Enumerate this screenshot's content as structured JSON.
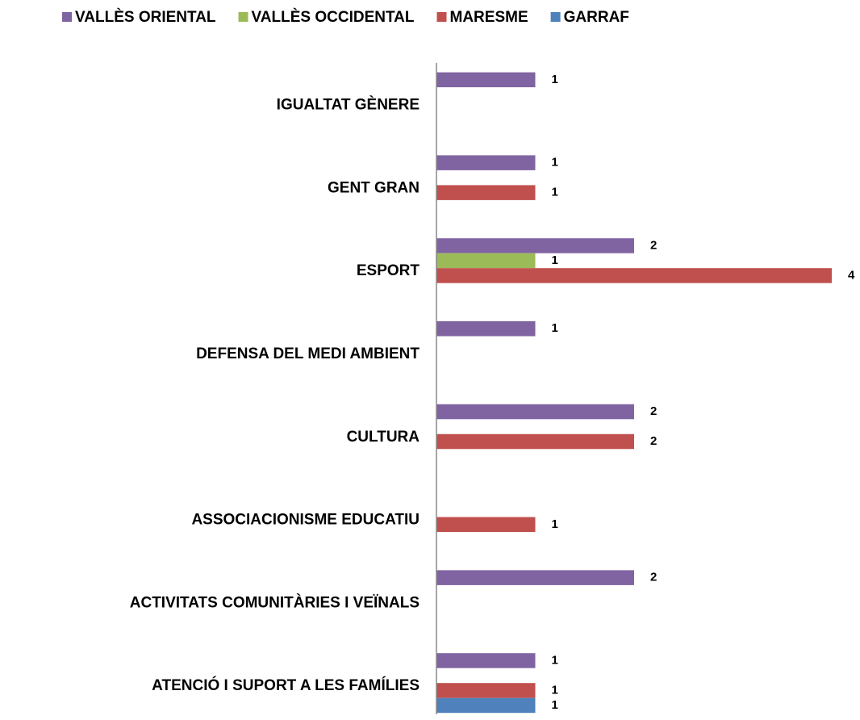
{
  "chart_data": {
    "type": "bar",
    "orientation": "horizontal",
    "categories": [
      "ATENCIÓ I SUPORT A LES FAMÍLIES",
      "ACTIVITATS COMUNITÀRIES I VEÏNALS",
      "ASSOCIACIONISME EDUCATIU",
      "CULTURA",
      "DEFENSA DEL MEDI AMBIENT",
      "ESPORT",
      "GENT GRAN",
      "IGUALTAT GÈNERE"
    ],
    "series": [
      {
        "name": "VALLÈS ORIENTAL",
        "color": "#8064a2",
        "values": [
          1,
          2,
          null,
          2,
          1,
          2,
          1,
          1
        ]
      },
      {
        "name": "VALLÈS OCCIDENTAL",
        "color": "#9bbb59",
        "values": [
          null,
          null,
          null,
          null,
          null,
          1,
          null,
          null
        ]
      },
      {
        "name": "MARESME",
        "color": "#c0504d",
        "values": [
          1,
          null,
          1,
          2,
          null,
          4,
          1,
          null
        ]
      },
      {
        "name": "GARRAF",
        "color": "#4f81bd",
        "values": [
          1,
          null,
          null,
          null,
          null,
          null,
          null,
          null
        ]
      }
    ],
    "xlim": [
      0,
      4
    ],
    "legend": "top"
  }
}
